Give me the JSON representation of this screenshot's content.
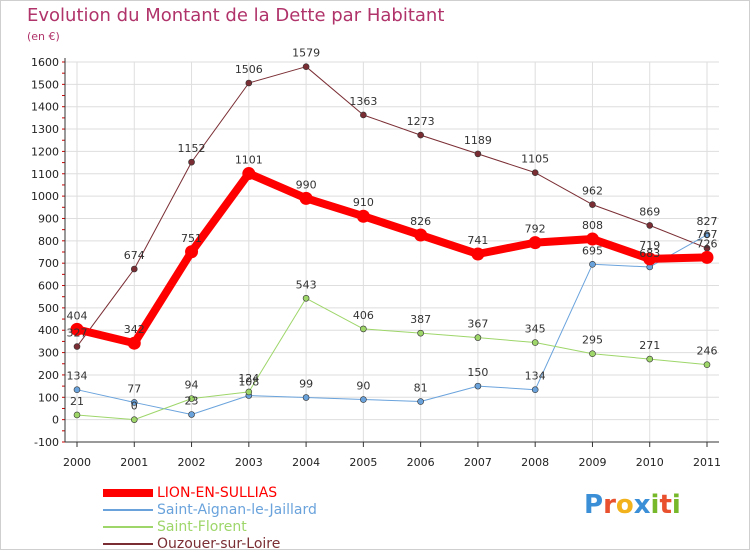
{
  "header": {
    "title": "Evolution du Montant de la Dette par Habitant",
    "subtitle": "(en €)"
  },
  "logo": {
    "text": "Proxiti",
    "letters": [
      "P",
      "r",
      "o",
      "x",
      "i",
      "t",
      "i"
    ],
    "colors": [
      "#3a8fd6",
      "#e8502e",
      "#f2b21b",
      "#3a8fd6",
      "#76b82a",
      "#e8502e",
      "#76b82a"
    ]
  },
  "colors": {
    "title": "#b0336a",
    "grid": "#dedede",
    "axis": "#333333"
  },
  "chart_data": {
    "type": "line",
    "title": "Evolution du Montant de la Dette par Habitant",
    "subtitle": "(en €)",
    "x": [
      "2000",
      "2001",
      "2002",
      "2003",
      "2004",
      "2005",
      "2006",
      "2007",
      "2008",
      "2009",
      "2010",
      "2011"
    ],
    "yticks": [
      -100,
      0,
      100,
      200,
      300,
      400,
      500,
      600,
      700,
      800,
      900,
      1000,
      1100,
      1200,
      1300,
      1400,
      1500,
      1600
    ],
    "ylim": [
      -100,
      1600
    ],
    "grid": true,
    "legend_position": "bottom-left",
    "series": [
      {
        "name": "LION-EN-SULLIAS",
        "color": "#ff0000",
        "width": 8,
        "values": [
          404,
          342,
          751,
          1101,
          990,
          910,
          826,
          741,
          792,
          808,
          719,
          726
        ],
        "labels": [
          "404",
          "342",
          "751",
          "1101",
          "990",
          "910",
          "826",
          "741",
          "792",
          "808",
          "719",
          "726"
        ]
      },
      {
        "name": "Saint-Aignan-le-Jaillard",
        "color": "#6aa3dc",
        "width": 1,
        "values": [
          134,
          77,
          23,
          108,
          99,
          90,
          81,
          150,
          134,
          695,
          683,
          827
        ],
        "labels": [
          "134",
          "77",
          "23",
          "108",
          "99",
          "90",
          "81",
          "150",
          "134",
          "695",
          "683",
          "827"
        ]
      },
      {
        "name": "Saint-Florent",
        "color": "#9ed66a",
        "width": 1,
        "values": [
          21,
          0,
          94,
          124,
          543,
          406,
          387,
          367,
          345,
          295,
          271,
          246
        ],
        "labels": [
          "21",
          "0",
          "94",
          "124",
          "543",
          "406",
          "387",
          "367",
          "345",
          "295",
          "271",
          "246"
        ]
      },
      {
        "name": "Ouzouer-sur-Loire",
        "color": "#7a2e34",
        "width": 1,
        "values": [
          327,
          674,
          1152,
          1506,
          1579,
          1363,
          1273,
          1189,
          1105,
          962,
          869,
          767
        ],
        "labels": [
          "327",
          "674",
          "1152",
          "1506",
          "1579",
          "1363",
          "1273",
          "1189",
          "1105",
          "962",
          "869",
          "767"
        ]
      }
    ]
  }
}
